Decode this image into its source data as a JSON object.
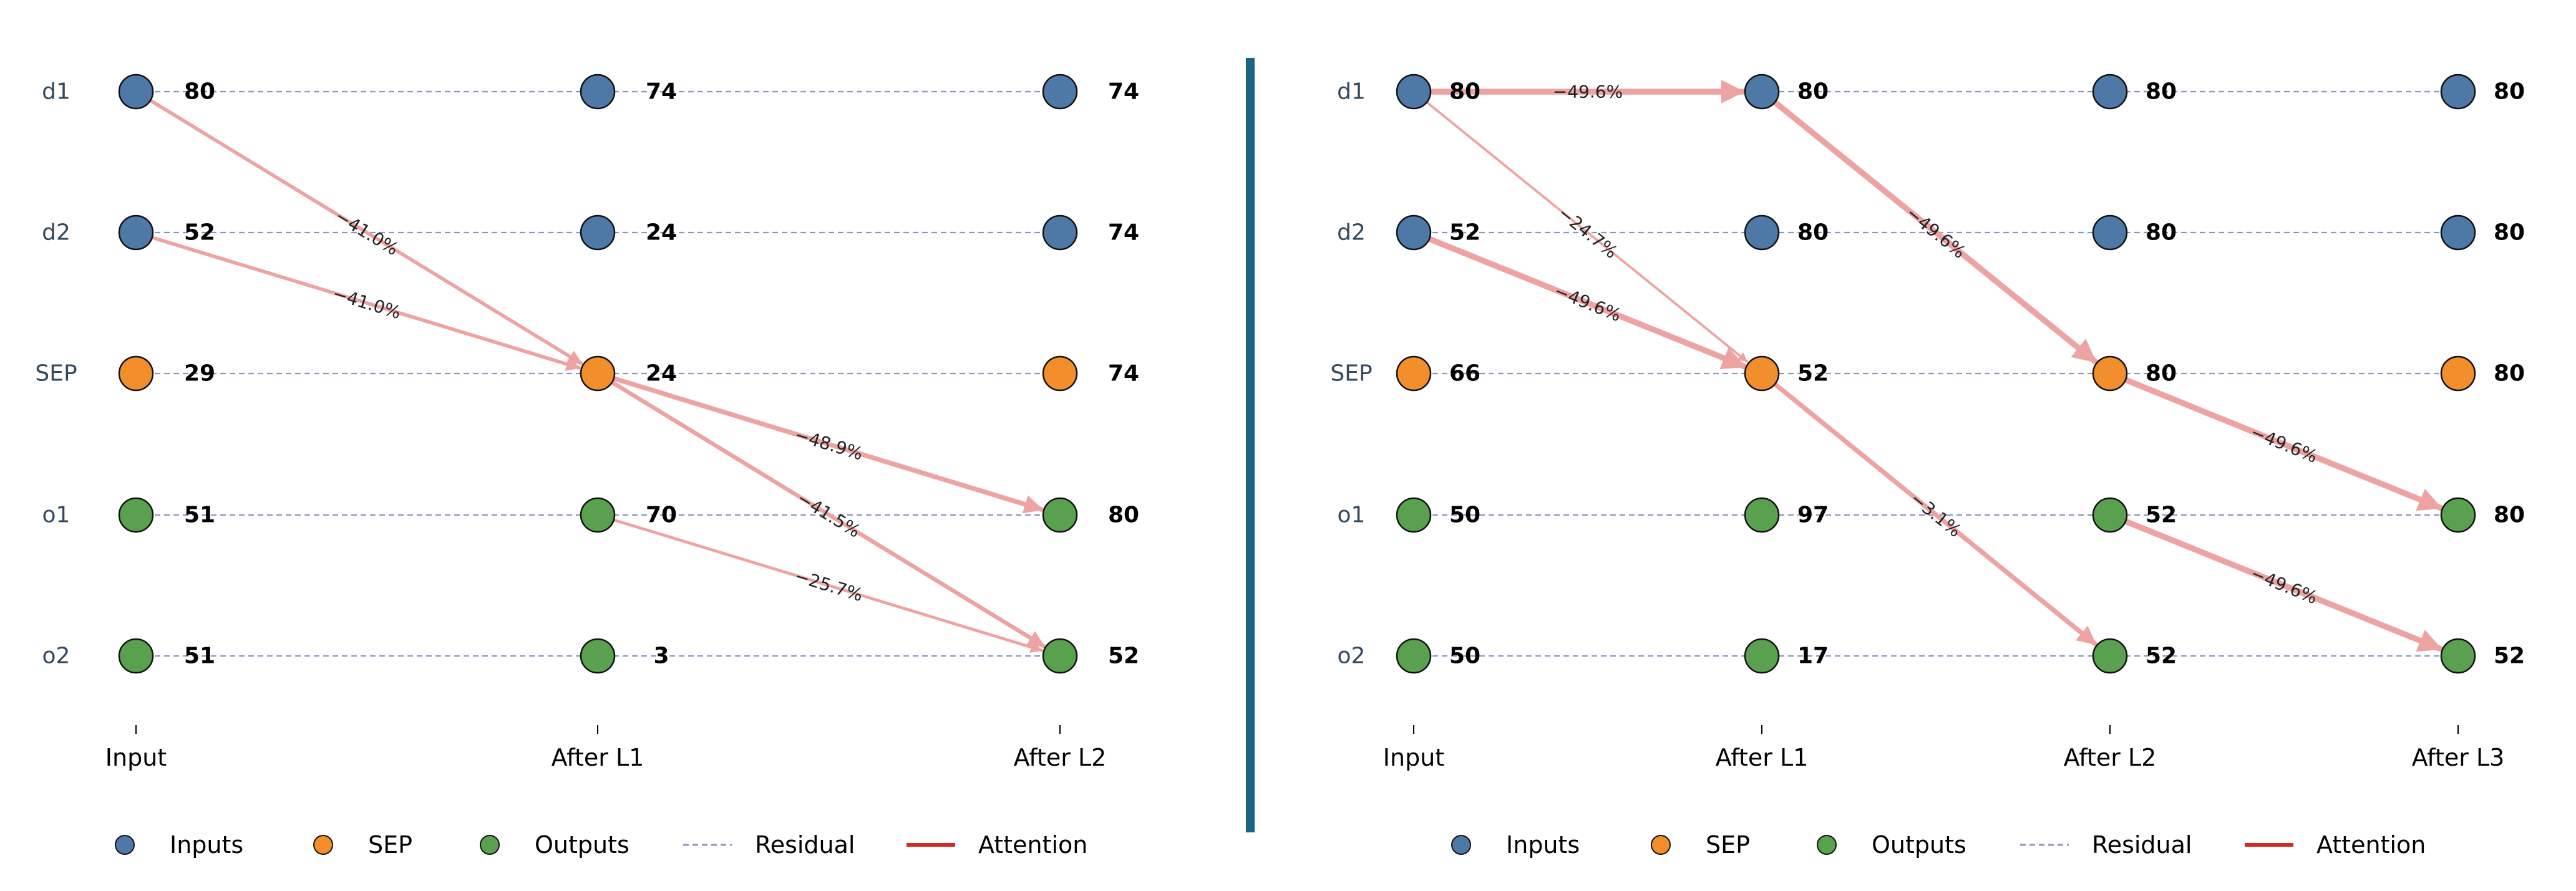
{
  "colors": {
    "inputs": "#4e79a7",
    "sep": "#f28e2b",
    "outputs": "#59a14f",
    "residual": "#8c96c0",
    "attention_legend": "#d62728",
    "attention_arrow": "#eea3a3",
    "row_label": "#34495e",
    "divider": "#1a6585"
  },
  "panels": [
    {
      "name": "left",
      "rows": [
        "d1",
        "d2",
        "SEP",
        "o1",
        "o2"
      ],
      "layers": [
        "Input",
        "After L1",
        "After L2"
      ],
      "values": [
        [
          "80",
          "74",
          "74"
        ],
        [
          "52",
          "24",
          "74"
        ],
        [
          "29",
          "24",
          "74"
        ],
        [
          "51",
          "70",
          "80"
        ],
        [
          "51",
          "3",
          "52"
        ]
      ],
      "arrows": [
        {
          "from": [
            0,
            0
          ],
          "to": [
            1,
            2
          ],
          "label": "−41.0%",
          "weight": 3
        },
        {
          "from": [
            0,
            1
          ],
          "to": [
            1,
            2
          ],
          "label": "−41.0%",
          "weight": 3
        },
        {
          "from": [
            1,
            2
          ],
          "to": [
            2,
            3
          ],
          "label": "−48.9%",
          "weight": 4
        },
        {
          "from": [
            1,
            2
          ],
          "to": [
            2,
            4
          ],
          "label": "−41.5%",
          "weight": 3.5
        },
        {
          "from": [
            1,
            3
          ],
          "to": [
            2,
            4
          ],
          "label": "−25.7%",
          "weight": 2.5
        }
      ]
    },
    {
      "name": "right",
      "rows": [
        "d1",
        "d2",
        "SEP",
        "o1",
        "o2"
      ],
      "layers": [
        "Input",
        "After L1",
        "After L2",
        "After L3"
      ],
      "values": [
        [
          "80",
          "80",
          "80",
          "80"
        ],
        [
          "52",
          "80",
          "80",
          "80"
        ],
        [
          "66",
          "52",
          "80",
          "80"
        ],
        [
          "50",
          "97",
          "52",
          "80"
        ],
        [
          "50",
          "17",
          "52",
          "52"
        ]
      ],
      "arrows": [
        {
          "from": [
            0,
            0
          ],
          "to": [
            1,
            0
          ],
          "label": "−49.6%",
          "weight": 5
        },
        {
          "from": [
            0,
            0
          ],
          "to": [
            1,
            2
          ],
          "label": "−24.7%",
          "weight": 2
        },
        {
          "from": [
            0,
            1
          ],
          "to": [
            1,
            2
          ],
          "label": "−49.6%",
          "weight": 5
        },
        {
          "from": [
            1,
            0
          ],
          "to": [
            2,
            2
          ],
          "label": "−49.6%",
          "weight": 5
        },
        {
          "from": [
            1,
            2
          ],
          "to": [
            2,
            4
          ],
          "label": "−3.1%",
          "weight": 4
        },
        {
          "from": [
            2,
            2
          ],
          "to": [
            3,
            3
          ],
          "label": "−49.6%",
          "weight": 5
        },
        {
          "from": [
            2,
            3
          ],
          "to": [
            3,
            4
          ],
          "label": "−49.6%",
          "weight": 5
        }
      ]
    }
  ],
  "legend": [
    "Inputs",
    "SEP",
    "Outputs",
    "Residual",
    "Attention"
  ]
}
